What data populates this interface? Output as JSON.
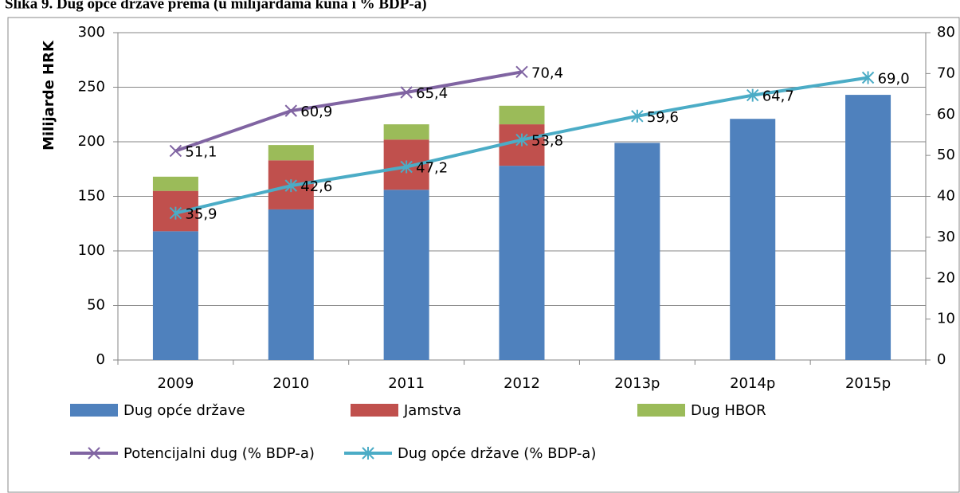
{
  "chart_data": {
    "type": "bar",
    "stacked": true,
    "title": "Slika 9. Dug opće države prema (u milijardama kuna i % BDP-a)",
    "ylabel": "Milijarde HRK",
    "categories": [
      "2009",
      "2010",
      "2011",
      "2012",
      "2013p",
      "2014p",
      "2015p"
    ],
    "series": [
      {
        "name": "Dug opće države",
        "type": "bar",
        "color": "#4f81bd",
        "values": [
          118,
          138,
          156,
          178,
          199,
          221,
          243
        ]
      },
      {
        "name": "Jamstva",
        "type": "bar",
        "color": "#c0504d",
        "values": [
          37,
          45,
          46,
          38,
          null,
          null,
          null
        ]
      },
      {
        "name": "Dug HBOR",
        "type": "bar",
        "color": "#9bbb59",
        "values": [
          13,
          14,
          14,
          17,
          null,
          null,
          null
        ]
      },
      {
        "name": "Potencijalni dug (% BDP-a)",
        "type": "line",
        "axis": "y2",
        "marker": "x",
        "color": "#8064a2",
        "values": [
          51.1,
          60.9,
          65.4,
          70.4,
          null,
          null,
          null
        ],
        "value_labels": [
          "51,1",
          "60,9",
          "65,4",
          "70,4",
          null,
          null,
          null
        ]
      },
      {
        "name": "Dug opće države (% BDP-a)",
        "type": "line",
        "axis": "y2",
        "marker": "star",
        "color": "#4bacc6",
        "values": [
          35.9,
          42.6,
          47.2,
          53.8,
          59.6,
          64.7,
          69.0
        ],
        "value_labels": [
          "35,9",
          "42,6",
          "47,2",
          "53,8",
          "59,6",
          "64,7",
          "69,0"
        ]
      }
    ],
    "ylim": [
      0,
      300
    ],
    "yticks": [
      0,
      50,
      100,
      150,
      200,
      250,
      300
    ],
    "y2lim": [
      0,
      80
    ],
    "y2ticks": [
      0,
      10,
      20,
      30,
      40,
      50,
      60,
      70,
      80
    ],
    "grid": true,
    "legend": "bottom"
  }
}
